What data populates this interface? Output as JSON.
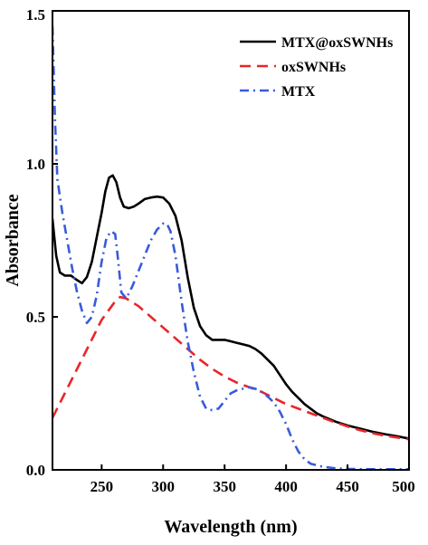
{
  "chart_data": {
    "type": "line",
    "title": "",
    "xlabel": "Wavelength (nm)",
    "ylabel": "Absorbance",
    "xlim": [
      210,
      500
    ],
    "ylim": [
      0.0,
      1.5
    ],
    "x_ticks": [
      250,
      300,
      350,
      400,
      450,
      500
    ],
    "x_tick_labels": [
      "250",
      "300",
      "350",
      "400",
      "450",
      "500"
    ],
    "y_ticks": [
      0.0,
      0.5,
      1.0,
      1.5
    ],
    "y_tick_labels": [
      "0.0",
      "0.5",
      "1.0",
      "1.5"
    ],
    "grid": false,
    "legend_position": "top-right",
    "series": [
      {
        "name": "MTX@oxSWNHs",
        "color": "#000000",
        "dash": "solid",
        "points": [
          [
            210,
            0.82
          ],
          [
            213,
            0.7
          ],
          [
            216,
            0.645
          ],
          [
            220,
            0.635
          ],
          [
            225,
            0.635
          ],
          [
            230,
            0.62
          ],
          [
            234,
            0.61
          ],
          [
            238,
            0.63
          ],
          [
            242,
            0.68
          ],
          [
            246,
            0.76
          ],
          [
            250,
            0.84
          ],
          [
            253,
            0.91
          ],
          [
            256,
            0.955
          ],
          [
            259,
            0.962
          ],
          [
            262,
            0.94
          ],
          [
            265,
            0.89
          ],
          [
            268,
            0.86
          ],
          [
            272,
            0.855
          ],
          [
            276,
            0.86
          ],
          [
            280,
            0.87
          ],
          [
            285,
            0.885
          ],
          [
            290,
            0.89
          ],
          [
            295,
            0.893
          ],
          [
            300,
            0.89
          ],
          [
            305,
            0.87
          ],
          [
            310,
            0.83
          ],
          [
            315,
            0.75
          ],
          [
            320,
            0.63
          ],
          [
            325,
            0.53
          ],
          [
            330,
            0.47
          ],
          [
            335,
            0.44
          ],
          [
            340,
            0.425
          ],
          [
            345,
            0.425
          ],
          [
            350,
            0.425
          ],
          [
            355,
            0.42
          ],
          [
            360,
            0.415
          ],
          [
            365,
            0.41
          ],
          [
            370,
            0.405
          ],
          [
            375,
            0.395
          ],
          [
            380,
            0.38
          ],
          [
            385,
            0.36
          ],
          [
            390,
            0.34
          ],
          [
            395,
            0.31
          ],
          [
            400,
            0.28
          ],
          [
            405,
            0.255
          ],
          [
            410,
            0.235
          ],
          [
            415,
            0.215
          ],
          [
            420,
            0.2
          ],
          [
            425,
            0.185
          ],
          [
            430,
            0.175
          ],
          [
            440,
            0.158
          ],
          [
            450,
            0.145
          ],
          [
            460,
            0.135
          ],
          [
            470,
            0.125
          ],
          [
            480,
            0.117
          ],
          [
            490,
            0.11
          ],
          [
            500,
            0.102
          ]
        ]
      },
      {
        "name": "oxSWNHs",
        "color": "#e8262a",
        "dash": "dashed",
        "points": [
          [
            210,
            0.17
          ],
          [
            220,
            0.25
          ],
          [
            230,
            0.33
          ],
          [
            240,
            0.41
          ],
          [
            250,
            0.49
          ],
          [
            260,
            0.545
          ],
          [
            265,
            0.565
          ],
          [
            270,
            0.56
          ],
          [
            280,
            0.535
          ],
          [
            290,
            0.5
          ],
          [
            300,
            0.465
          ],
          [
            310,
            0.43
          ],
          [
            320,
            0.395
          ],
          [
            330,
            0.36
          ],
          [
            340,
            0.33
          ],
          [
            350,
            0.305
          ],
          [
            360,
            0.285
          ],
          [
            370,
            0.27
          ],
          [
            380,
            0.255
          ],
          [
            390,
            0.235
          ],
          [
            400,
            0.215
          ],
          [
            410,
            0.2
          ],
          [
            420,
            0.185
          ],
          [
            430,
            0.17
          ],
          [
            440,
            0.155
          ],
          [
            450,
            0.142
          ],
          [
            460,
            0.13
          ],
          [
            470,
            0.12
          ],
          [
            480,
            0.112
          ],
          [
            490,
            0.106
          ],
          [
            500,
            0.1
          ]
        ]
      },
      {
        "name": "MTX",
        "color": "#3a5bd9",
        "dash": "dashdot",
        "points": [
          [
            210,
            1.45
          ],
          [
            212,
            1.15
          ],
          [
            214,
            0.95
          ],
          [
            218,
            0.84
          ],
          [
            222,
            0.75
          ],
          [
            226,
            0.66
          ],
          [
            230,
            0.58
          ],
          [
            234,
            0.52
          ],
          [
            238,
            0.48
          ],
          [
            242,
            0.5
          ],
          [
            246,
            0.57
          ],
          [
            250,
            0.68
          ],
          [
            254,
            0.76
          ],
          [
            258,
            0.78
          ],
          [
            261,
            0.77
          ],
          [
            263,
            0.7
          ],
          [
            266,
            0.58
          ],
          [
            270,
            0.56
          ],
          [
            275,
            0.6
          ],
          [
            280,
            0.65
          ],
          [
            285,
            0.7
          ],
          [
            290,
            0.75
          ],
          [
            295,
            0.785
          ],
          [
            300,
            0.805
          ],
          [
            303,
            0.805
          ],
          [
            306,
            0.78
          ],
          [
            310,
            0.7
          ],
          [
            315,
            0.55
          ],
          [
            320,
            0.42
          ],
          [
            325,
            0.32
          ],
          [
            330,
            0.24
          ],
          [
            335,
            0.2
          ],
          [
            340,
            0.195
          ],
          [
            345,
            0.2
          ],
          [
            350,
            0.225
          ],
          [
            355,
            0.25
          ],
          [
            360,
            0.26
          ],
          [
            365,
            0.265
          ],
          [
            370,
            0.27
          ],
          [
            375,
            0.265
          ],
          [
            380,
            0.255
          ],
          [
            385,
            0.24
          ],
          [
            390,
            0.22
          ],
          [
            395,
            0.19
          ],
          [
            400,
            0.15
          ],
          [
            405,
            0.1
          ],
          [
            410,
            0.06
          ],
          [
            415,
            0.035
          ],
          [
            420,
            0.02
          ],
          [
            430,
            0.01
          ],
          [
            440,
            0.005
          ],
          [
            450,
            0.003
          ],
          [
            470,
            0.002
          ],
          [
            500,
            0.002
          ]
        ]
      }
    ]
  }
}
